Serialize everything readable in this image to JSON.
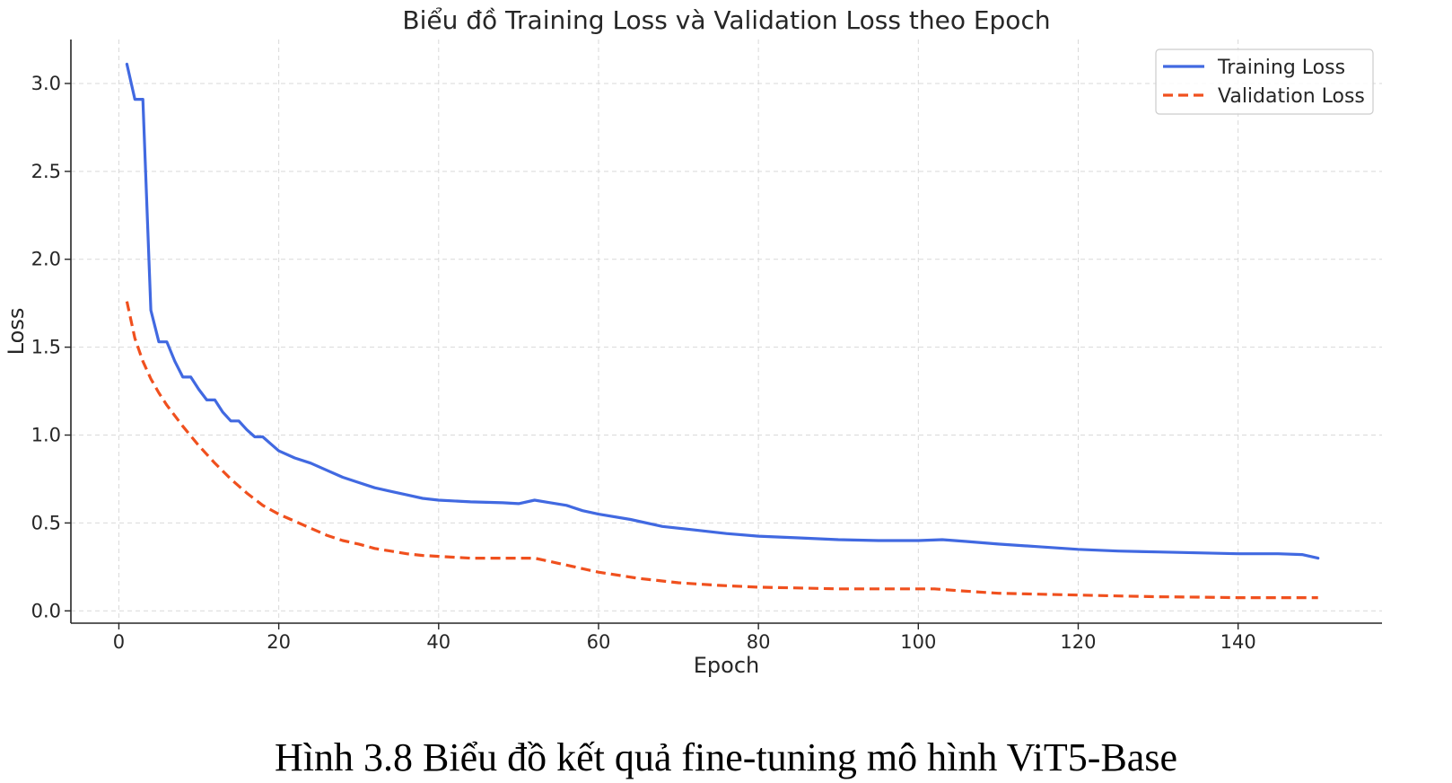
{
  "caption": "Hình 3.8 Biểu đồ kết quả fine-tuning mô hình ViT5-Base",
  "chart_data": {
    "type": "line",
    "title": "Biểu đồ Training Loss và Validation Loss theo Epoch",
    "xlabel": "Epoch",
    "ylabel": "Loss",
    "xlim": [
      -6,
      158
    ],
    "ylim": [
      -0.07,
      3.25
    ],
    "xticks": [
      0,
      20,
      40,
      60,
      80,
      100,
      120,
      140
    ],
    "yticks": [
      0.0,
      0.5,
      1.0,
      1.5,
      2.0,
      2.5,
      3.0
    ],
    "xtick_labels": [
      "0",
      "20",
      "40",
      "60",
      "80",
      "100",
      "120",
      "140"
    ],
    "ytick_labels": [
      "0.0",
      "0.5",
      "1.0",
      "1.5",
      "2.0",
      "2.5",
      "3.0"
    ],
    "grid": true,
    "legend_position": "top-right",
    "series": [
      {
        "name": "Training Loss",
        "color": "#4169e1",
        "style": "solid",
        "x": [
          1,
          2,
          3,
          4,
          5,
          6,
          7,
          8,
          9,
          10,
          11,
          12,
          13,
          14,
          15,
          16,
          17,
          18,
          19,
          20,
          22,
          24,
          26,
          28,
          30,
          32,
          34,
          36,
          38,
          40,
          44,
          48,
          50,
          52,
          54,
          56,
          58,
          60,
          64,
          68,
          72,
          76,
          80,
          85,
          90,
          95,
          100,
          103,
          106,
          110,
          115,
          120,
          125,
          130,
          135,
          140,
          145,
          148,
          150
        ],
        "y": [
          3.11,
          2.91,
          2.91,
          1.71,
          1.53,
          1.53,
          1.42,
          1.33,
          1.33,
          1.26,
          1.2,
          1.2,
          1.13,
          1.08,
          1.08,
          1.03,
          0.99,
          0.99,
          0.95,
          0.91,
          0.87,
          0.84,
          0.8,
          0.76,
          0.73,
          0.7,
          0.68,
          0.66,
          0.64,
          0.63,
          0.62,
          0.615,
          0.61,
          0.63,
          0.615,
          0.6,
          0.57,
          0.55,
          0.52,
          0.48,
          0.46,
          0.44,
          0.425,
          0.415,
          0.405,
          0.4,
          0.4,
          0.405,
          0.395,
          0.38,
          0.365,
          0.35,
          0.34,
          0.335,
          0.33,
          0.325,
          0.325,
          0.32,
          0.3
        ]
      },
      {
        "name": "Validation Loss",
        "color": "#f0501e",
        "style": "dashed",
        "x": [
          1,
          2,
          3,
          4,
          5,
          6,
          8,
          10,
          12,
          14,
          16,
          18,
          20,
          22,
          24,
          26,
          28,
          30,
          32,
          34,
          36,
          38,
          40,
          44,
          48,
          50,
          52,
          55,
          58,
          60,
          65,
          70,
          75,
          80,
          85,
          90,
          95,
          100,
          102,
          105,
          110,
          115,
          120,
          125,
          130,
          135,
          140,
          145,
          150
        ],
        "y": [
          1.76,
          1.55,
          1.42,
          1.32,
          1.24,
          1.17,
          1.05,
          0.94,
          0.84,
          0.75,
          0.67,
          0.6,
          0.55,
          0.51,
          0.47,
          0.43,
          0.4,
          0.38,
          0.355,
          0.34,
          0.325,
          0.315,
          0.31,
          0.3,
          0.3,
          0.3,
          0.3,
          0.27,
          0.24,
          0.22,
          0.185,
          0.16,
          0.145,
          0.135,
          0.13,
          0.125,
          0.125,
          0.125,
          0.125,
          0.115,
          0.1,
          0.095,
          0.09,
          0.085,
          0.08,
          0.078,
          0.075,
          0.075,
          0.075
        ]
      }
    ]
  }
}
